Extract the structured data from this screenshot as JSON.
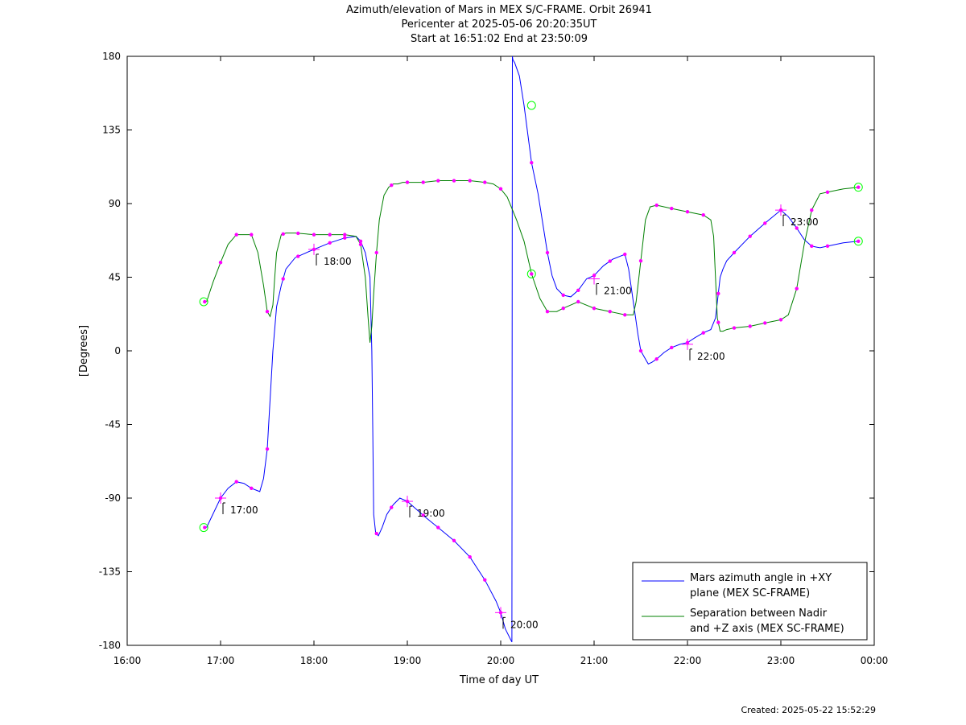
{
  "title": {
    "line1": "Azimuth/elevation of Mars in MEX S/C-FRAME.  Orbit 26941",
    "line2": "Pericenter at 2025-05-06 20:20:35UT",
    "line3": "Start at 16:51:02 End at 23:50:09"
  },
  "footer": {
    "created": "Created: 2025-05-22 15:52:29"
  },
  "colors": {
    "series1": "#0000ff",
    "series2": "#008000",
    "marker": "#ff00ff",
    "endpoint": "#00ff00"
  },
  "chart_data": {
    "type": "line",
    "xlabel": "Time of day UT",
    "ylabel": "[Degrees]",
    "xlim": [
      16,
      24
    ],
    "ylim": [
      -180,
      180
    ],
    "xticks": [
      16,
      17,
      18,
      19,
      20,
      21,
      22,
      23,
      24
    ],
    "xtick_labels": [
      "16:00",
      "17:00",
      "18:00",
      "19:00",
      "20:00",
      "21:00",
      "22:00",
      "23:00",
      "00:00"
    ],
    "yticks": [
      180,
      135,
      90,
      45,
      0,
      -45,
      -90,
      -135,
      -180
    ],
    "ytick_labels": [
      "180",
      "135",
      "90",
      "45",
      "0",
      "-45",
      "-90",
      "-135",
      "-180"
    ],
    "legend_position": "bottom-right",
    "series": [
      {
        "name": "Mars azimuth angle in +XY plane (MEX SC-FRAME)",
        "legend_lines": [
          "Mars azimuth angle in +XY",
          "plane (MEX SC-FRAME)"
        ],
        "color": "#0000ff",
        "x": [
          16.85,
          16.9,
          17.0,
          17.08,
          17.17,
          17.25,
          17.33,
          17.42,
          17.46,
          17.5,
          17.53,
          17.56,
          17.6,
          17.65,
          17.7,
          17.8,
          18.0,
          18.17,
          18.33,
          18.45,
          18.5,
          18.55,
          18.6,
          18.62,
          18.63,
          18.64,
          18.66,
          18.69,
          18.73,
          18.78,
          18.85,
          18.92,
          19.0,
          19.1,
          19.2,
          19.33,
          19.5,
          19.67,
          19.83,
          19.95,
          20.0,
          20.05,
          20.12,
          20.125,
          20.13,
          20.15,
          20.2,
          20.25,
          20.33,
          20.4,
          20.5,
          20.55,
          20.6,
          20.67,
          20.75,
          20.83,
          20.92,
          21.0,
          21.1,
          21.2,
          21.33,
          21.37,
          21.42,
          21.47,
          21.5,
          21.55,
          21.58,
          21.62,
          21.67,
          21.75,
          21.83,
          21.92,
          22.0,
          22.08,
          22.17,
          22.25,
          22.3,
          22.33,
          22.35,
          22.38,
          22.42,
          22.5,
          22.67,
          22.83,
          23.0,
          23.08,
          23.17,
          23.25,
          23.33,
          23.42,
          23.5,
          23.67,
          23.83
        ],
        "y": [
          -108,
          -102,
          -90,
          -84,
          -80,
          -81,
          -84,
          -86,
          -78,
          -60,
          -30,
          0,
          27,
          40,
          50,
          57,
          62,
          66,
          69,
          70,
          67,
          60,
          45,
          0,
          -50,
          -100,
          -111,
          -113,
          -108,
          -100,
          -94,
          -90,
          -92,
          -97,
          -102,
          -108,
          -116,
          -126,
          -140,
          -153,
          -160,
          -170,
          -178,
          180,
          178,
          176,
          168,
          150,
          115,
          96,
          60,
          46,
          38,
          34,
          33,
          37,
          44,
          46,
          52,
          56,
          59,
          50,
          30,
          10,
          0,
          -5,
          -8,
          -7,
          -5,
          -1,
          2,
          4,
          5,
          8,
          11,
          13,
          20,
          35,
          45,
          50,
          55,
          60,
          70,
          78,
          86,
          82,
          75,
          68,
          64,
          63,
          64,
          66,
          67
        ],
        "markers_x": [
          16.83,
          17.0,
          17.17,
          17.33,
          17.5,
          17.67,
          17.83,
          18.0,
          18.17,
          18.33,
          18.5,
          18.67,
          18.83,
          19.0,
          19.17,
          19.33,
          19.5,
          19.67,
          19.83,
          20.0,
          20.33,
          20.5,
          20.67,
          20.83,
          21.0,
          21.17,
          21.33,
          21.5,
          21.67,
          21.83,
          22.0,
          22.17,
          22.33,
          22.5,
          22.67,
          22.83,
          23.0,
          23.17,
          23.33,
          23.5,
          23.83
        ]
      },
      {
        "name": "Separation between Nadir and +Z axis (MEX SC-FRAME)",
        "legend_lines": [
          "Separation between Nadir",
          "and +Z axis (MEX SC-FRAME)"
        ],
        "color": "#008000",
        "x": [
          16.85,
          16.92,
          17.0,
          17.08,
          17.17,
          17.25,
          17.33,
          17.4,
          17.46,
          17.5,
          17.53,
          17.56,
          17.58,
          17.6,
          17.65,
          17.7,
          17.8,
          18.0,
          18.17,
          18.33,
          18.45,
          18.5,
          18.55,
          18.58,
          18.6,
          18.62,
          18.64,
          18.67,
          18.7,
          18.75,
          18.8,
          18.85,
          18.9,
          18.95,
          19.0,
          19.17,
          19.33,
          19.5,
          19.67,
          19.83,
          19.92,
          20.0,
          20.07,
          20.12,
          20.17,
          20.25,
          20.33,
          20.42,
          20.5,
          20.6,
          20.67,
          20.75,
          20.83,
          21.0,
          21.17,
          21.33,
          21.42,
          21.45,
          21.5,
          21.55,
          21.6,
          21.67,
          21.83,
          22.0,
          22.17,
          22.25,
          22.28,
          22.3,
          22.32,
          22.35,
          22.38,
          22.42,
          22.5,
          22.67,
          22.83,
          23.0,
          23.08,
          23.17,
          23.25,
          23.33,
          23.42,
          23.5,
          23.67,
          23.83
        ],
        "y": [
          30,
          42,
          54,
          65,
          71,
          71,
          71,
          60,
          40,
          24,
          21,
          28,
          45,
          60,
          71,
          72,
          72,
          71,
          71,
          71,
          70,
          65,
          45,
          20,
          5,
          15,
          35,
          60,
          80,
          95,
          100,
          102,
          102,
          103,
          103,
          103,
          104,
          104,
          104,
          103,
          102,
          99,
          94,
          87,
          80,
          67,
          47,
          32,
          24,
          24,
          26,
          28,
          30,
          26,
          24,
          22,
          22,
          30,
          55,
          80,
          88,
          89,
          87,
          85,
          83,
          80,
          70,
          45,
          20,
          12,
          12,
          13,
          14,
          15,
          17,
          19,
          22,
          38,
          65,
          86,
          96,
          97,
          99,
          100
        ],
        "markers_x": [
          16.83,
          17.0,
          17.17,
          17.33,
          17.5,
          17.67,
          17.83,
          18.0,
          18.17,
          18.33,
          18.5,
          18.67,
          18.83,
          19.0,
          19.17,
          19.33,
          19.5,
          19.67,
          19.83,
          20.0,
          20.33,
          20.5,
          20.67,
          20.83,
          21.0,
          21.17,
          21.33,
          21.5,
          21.67,
          21.83,
          22.0,
          22.17,
          22.33,
          22.5,
          22.67,
          22.83,
          23.0,
          23.17,
          23.33,
          23.5,
          23.83
        ]
      }
    ],
    "hour_annotations": [
      {
        "label": "17:00",
        "x": 17.0,
        "y": -90
      },
      {
        "label": "18:00",
        "x": 18.0,
        "y": 62
      },
      {
        "label": "19:00",
        "x": 19.0,
        "y": -92
      },
      {
        "label": "20:00",
        "x": 20.0,
        "y": -160
      },
      {
        "label": "21:00",
        "x": 21.0,
        "y": 44
      },
      {
        "label": "22:00",
        "x": 22.0,
        "y": 4
      },
      {
        "label": "23:00",
        "x": 23.0,
        "y": 86
      }
    ],
    "endpoint_circles": [
      {
        "x": 16.82,
        "y": 30
      },
      {
        "x": 16.82,
        "y": -108
      },
      {
        "x": 20.33,
        "y": 150
      },
      {
        "x": 20.33,
        "y": 47
      },
      {
        "x": 23.83,
        "y": 100
      },
      {
        "x": 23.83,
        "y": 67
      }
    ]
  }
}
